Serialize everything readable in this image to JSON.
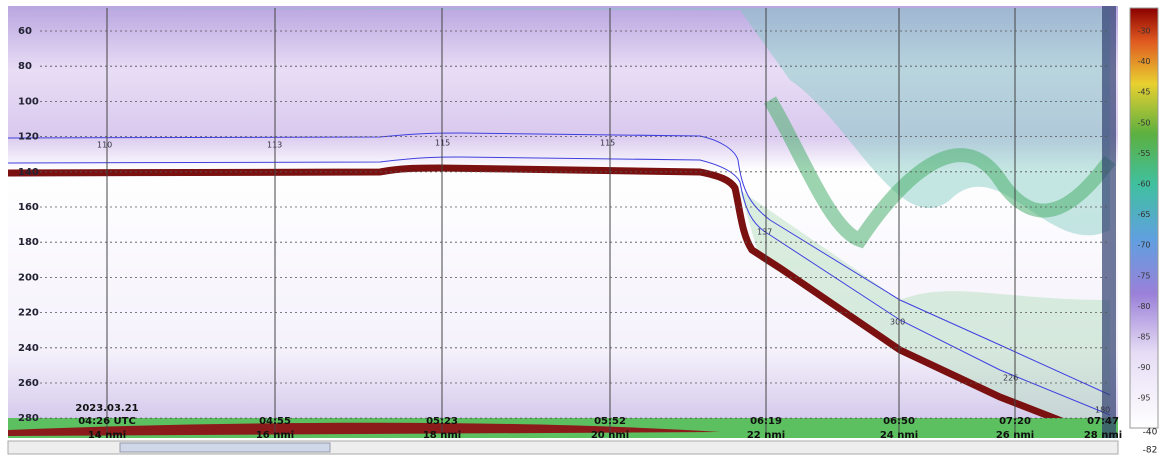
{
  "depth_labels": [
    "60",
    "80",
    "100",
    "120",
    "140",
    "160",
    "180",
    "200",
    "220",
    "240",
    "260",
    "280"
  ],
  "start_date": "2023.03.21",
  "times": [
    "04:26 UTC",
    "04:55",
    "05:23",
    "05:52",
    "06:19",
    "06:50",
    "07:20",
    "07:47"
  ],
  "distances": [
    "14 nmi",
    "16 nmi",
    "18 nmi",
    "20 nmi",
    "22 nmi",
    "24 nmi",
    "26 nmi",
    "28 nmi"
  ],
  "contour_labels": [
    "110",
    "113",
    "115",
    "115",
    "137",
    "300",
    "226",
    "180"
  ],
  "scale_labels": [
    "-30",
    "-40",
    "-45",
    "-50",
    "-55",
    "-60",
    "-65",
    "-70",
    "-75",
    "-80",
    "-85",
    "-90",
    "-95"
  ],
  "scale_bottom": [
    "-40",
    "-82"
  ]
}
